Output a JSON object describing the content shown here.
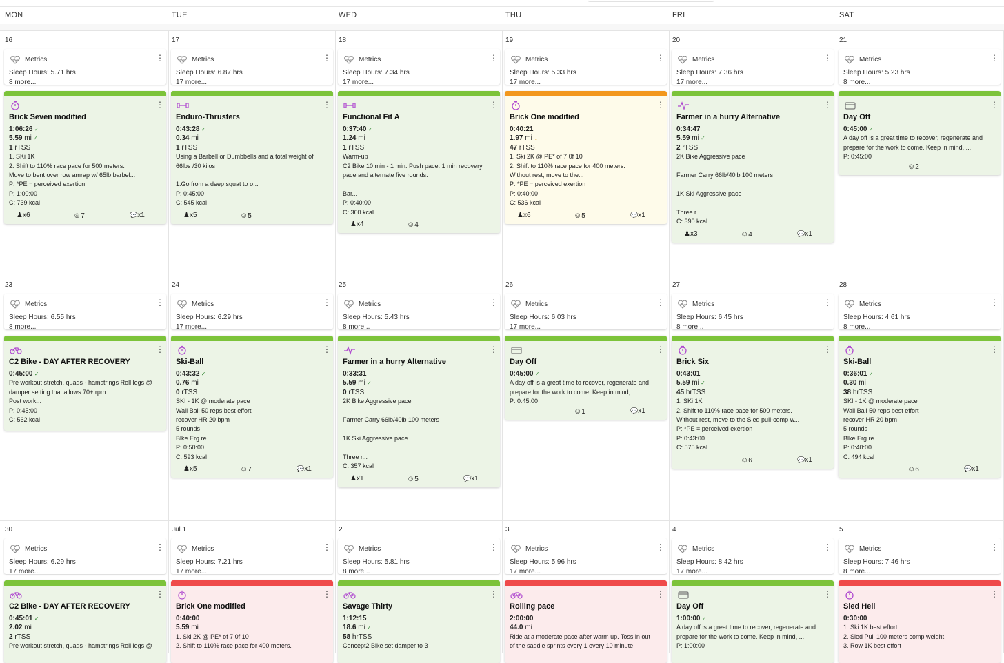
{
  "header": {
    "days": [
      "MON",
      "TUE",
      "WED",
      "THU",
      "FRI",
      "SAT"
    ]
  },
  "colors": {
    "green": "#7cc33a",
    "orange": "#f2971d",
    "red": "#ef4a4a",
    "icon": "#b04bd0"
  },
  "metrics_label": "Metrics",
  "weeks": [
    {
      "dates": [
        "16",
        "17",
        "18",
        "19",
        "20",
        "21"
      ],
      "metrics": [
        [
          "Sleep Hours: 5.71 hrs",
          "8 more..."
        ],
        [
          "Sleep Hours: 6.87 hrs",
          "17 more..."
        ],
        [
          "Sleep Hours: 7.34 hrs",
          "17 more..."
        ],
        [
          "Sleep Hours: 5.33 hrs",
          "17 more..."
        ],
        [
          "Sleep Hours: 7.36 hrs",
          "17 more..."
        ],
        [
          "Sleep Hours: 5.23 hrs",
          "8 more..."
        ]
      ],
      "cards": [
        {
          "color": "green",
          "icon": "stopwatch-icon",
          "title": "Brick Seven modified",
          "stats": [
            [
              "1:06:26",
              "",
              " ✓"
            ],
            [
              "5.59",
              " mi",
              " ✓"
            ],
            [
              "1",
              " rTSS",
              ""
            ]
          ],
          "lines": [
            "1. SKi 1K",
            "2. Shift to 110% race pace for 500 meters.",
            "Move to bent over row amrap w/ 65lb barbel...",
            "P: *PE = perceived exertion",
            "P: 1:00:00",
            "C: 739 kcal"
          ],
          "foot": {
            "strength": "x6",
            "mood": "7",
            "comments": "x1"
          }
        },
        {
          "color": "green",
          "icon": "dumbbell-icon",
          "title": "Enduro-Thrusters",
          "stats": [
            [
              "0:43:28",
              "",
              " ✓"
            ],
            [
              "0.34",
              " mi",
              ""
            ],
            [
              "1",
              " rTSS",
              ""
            ]
          ],
          "lines": [
            "Using a Barbell or Dumbbells and a total weight of",
            "66lbs /30 kilos",
            "",
            "1.Go from a deep squat to o...",
            "P: 0:45:00",
            "C: 545 kcal"
          ],
          "foot": {
            "strength": "x5",
            "mood": "5",
            "comments": ""
          }
        },
        {
          "color": "green",
          "icon": "dumbbell-icon",
          "title": "Functional Fit A",
          "stats": [
            [
              "0:37:40",
              "",
              " ✓"
            ],
            [
              "1.24",
              " mi",
              ""
            ],
            [
              "1",
              " rTSS",
              ""
            ]
          ],
          "lines": [
            "Warm-up",
            "C2 Bike 10 min - 1 min. Push pace: 1 min recovery",
            "pace and alternate five rounds.",
            "",
            "Bar...",
            "P: 0:40:00",
            "C: 360 kcal"
          ],
          "foot": {
            "strength": "x4",
            "mood": "4",
            "comments": ""
          }
        },
        {
          "color": "orange",
          "icon": "stopwatch-icon",
          "title": "Brick One modified",
          "stats": [
            [
              "0:40:21",
              "",
              ""
            ],
            [
              "1.97",
              " mi",
              " ⌄"
            ],
            [
              "47",
              " rTSS",
              ""
            ]
          ],
          "lines": [
            "1. Ski 2K @ PE* of 7 0f 10",
            "2. Shift to 110% race pace for 400 meters.",
            "Without rest, move to the...",
            "P: *PE = perceived exertion",
            "P: 0:40:00",
            "C: 536 kcal"
          ],
          "foot": {
            "strength": "x6",
            "mood": "5",
            "comments": "x1"
          }
        },
        {
          "color": "green",
          "icon": "heartbeat-icon",
          "title": "Farmer in a hurry Alternative",
          "stats": [
            [
              "0:34:47",
              "",
              ""
            ],
            [
              "5.59",
              " mi",
              " ✓"
            ],
            [
              "2",
              " rTSS",
              ""
            ]
          ],
          "lines": [
            "2K Bike Aggressive pace",
            "",
            "Farmer Carry 66lb/40lb 100 meters",
            "",
            "1K Ski Aggressive pace",
            "",
            "Three r...",
            "C: 390 kcal"
          ],
          "foot": {
            "strength": "x3",
            "mood": "4",
            "comments": "x1"
          }
        },
        {
          "color": "green",
          "icon": "day-off-icon",
          "title": "Day Off",
          "stats": [
            [
              "0:45:00",
              "",
              " ✓"
            ]
          ],
          "lines": [
            "A day off is a great time to recover, regenerate and",
            "prepare for the work to come. Keep in mind, ...",
            "P: 0:45:00"
          ],
          "foot": {
            "strength": "",
            "mood": "2",
            "comments": ""
          }
        }
      ]
    },
    {
      "dates": [
        "23",
        "24",
        "25",
        "26",
        "27",
        "28"
      ],
      "metrics": [
        [
          "Sleep Hours: 6.55 hrs",
          "8 more..."
        ],
        [
          "Sleep Hours: 6.29 hrs",
          "17 more..."
        ],
        [
          "Sleep Hours: 5.43 hrs",
          "8 more..."
        ],
        [
          "Sleep Hours: 6.03 hrs",
          "17 more..."
        ],
        [
          "Sleep Hours: 6.45 hrs",
          "8 more..."
        ],
        [
          "Sleep Hours: 4.61 hrs",
          "8 more..."
        ]
      ],
      "cards": [
        {
          "color": "green",
          "icon": "bike-icon",
          "title": "C2 Bike - DAY AFTER RECOVERY",
          "stats": [
            [
              "0:45:00",
              "",
              " ✓"
            ]
          ],
          "lines": [
            "Pre workout stretch, quads - hamstrings Roll legs @",
            "damper setting that allows 70+ rpm",
            "Post work...",
            "P: 0:45:00",
            "C: 562 kcal"
          ],
          "foot": {
            "strength": "",
            "mood": "",
            "comments": ""
          }
        },
        {
          "color": "green",
          "icon": "stopwatch-icon",
          "title": "Ski-Ball",
          "stats": [
            [
              "0:43:32",
              "",
              " ✓"
            ],
            [
              "0.76",
              " mi",
              ""
            ],
            [
              "0",
              " rTSS",
              ""
            ]
          ],
          "lines": [
            "SKI - 1K @ moderate pace",
            "Wall Ball 50 reps best effort",
            "recover HR 20 bpm",
            "5 rounds",
            "Blke Erg re...",
            "P: 0:50:00",
            "C: 593 kcal"
          ],
          "foot": {
            "strength": "x5",
            "mood": "7",
            "comments": "x1"
          }
        },
        {
          "color": "green",
          "icon": "heartbeat-icon",
          "title": "Farmer in a hurry Alternative",
          "stats": [
            [
              "0:33:31",
              "",
              ""
            ],
            [
              "5.59",
              " mi",
              " ✓"
            ],
            [
              "0",
              " rTSS",
              ""
            ]
          ],
          "lines": [
            "2K Bike Aggressive pace",
            "",
            "Farmer Carry 66lb/40lb 100 meters",
            "",
            "1K Ski Aggressive pace",
            "",
            "Three r...",
            "C: 357 kcal"
          ],
          "foot": {
            "strength": "x1",
            "mood": "5",
            "comments": "x1"
          }
        },
        {
          "color": "green",
          "icon": "day-off-icon",
          "title": "Day Off",
          "stats": [
            [
              "0:45:00",
              "",
              " ✓"
            ]
          ],
          "lines": [
            "A day off is a great time to recover, regenerate and",
            "prepare for the work to come. Keep in mind, ...",
            "P: 0:45:00"
          ],
          "foot": {
            "strength": "",
            "mood": "1",
            "comments": "x1"
          }
        },
        {
          "color": "green",
          "icon": "stopwatch-icon",
          "title": "Brick Six",
          "stats": [
            [
              "0:43:01",
              "",
              ""
            ],
            [
              "5.59",
              " mi",
              " ✓"
            ],
            [
              "45",
              " hrTSS",
              ""
            ]
          ],
          "lines": [
            "1. SKi 1K",
            "2. Shift to 110% race pace for 500 meters.",
            "Without rest, move to the Sled pull-comp w...",
            "P: *PE = perceived exertion",
            "P: 0:43:00",
            "C: 575 kcal"
          ],
          "foot": {
            "strength": "",
            "mood": "6",
            "comments": "x1"
          }
        },
        {
          "color": "green",
          "icon": "stopwatch-icon",
          "title": "Ski-Ball",
          "stats": [
            [
              "0:36:01",
              "",
              " ✓"
            ],
            [
              "0.30",
              " mi",
              ""
            ],
            [
              "38",
              " hrTSS",
              ""
            ]
          ],
          "lines": [
            "SKI - 1K @ moderate pace",
            "Wall Ball 50 reps best effort",
            "recover HR 20 bpm",
            "5 rounds",
            "Blke Erg re...",
            "P: 0:40:00",
            "C: 494 kcal"
          ],
          "foot": {
            "strength": "",
            "mood": "6",
            "comments": "x1"
          }
        }
      ]
    },
    {
      "dates": [
        "30",
        "Jul 1",
        "2",
        "3",
        "4",
        "5"
      ],
      "metrics": [
        [
          "Sleep Hours: 6.29 hrs",
          "17 more..."
        ],
        [
          "Sleep Hours: 7.21 hrs",
          "17 more..."
        ],
        [
          "Sleep Hours: 5.81 hrs",
          "8 more..."
        ],
        [
          "Sleep Hours: 5.96 hrs",
          "17 more..."
        ],
        [
          "Sleep Hours: 8.42 hrs",
          "17 more..."
        ],
        [
          "Sleep Hours: 7.46 hrs",
          "8 more..."
        ]
      ],
      "cards": [
        {
          "color": "green",
          "icon": "bike-icon",
          "title": "C2 Bike - DAY AFTER RECOVERY",
          "stats": [
            [
              "0:45:01",
              "",
              " ✓"
            ],
            [
              "2.02",
              " mi",
              ""
            ],
            [
              "2",
              " rTSS",
              ""
            ]
          ],
          "lines": [
            "Pre workout stretch, quads - hamstrings Roll legs @"
          ],
          "foot": {
            "strength": "",
            "mood": "",
            "comments": ""
          }
        },
        {
          "color": "red",
          "icon": "stopwatch-icon",
          "title": "Brick One modified",
          "stats": [
            [
              "0:40:00",
              "",
              ""
            ],
            [
              "5.59",
              " mi",
              ""
            ]
          ],
          "lines": [
            "1. Ski 2K @ PE* of 7 0f 10",
            "2. Shift to 110% race pace for 400 meters."
          ],
          "foot": {
            "strength": "",
            "mood": "",
            "comments": ""
          }
        },
        {
          "color": "green",
          "icon": "bike-icon",
          "title": "Savage Thirty",
          "stats": [
            [
              "1:12:15",
              "",
              ""
            ],
            [
              "18.6",
              " mi",
              " ✓"
            ],
            [
              "58",
              " hrTSS",
              ""
            ]
          ],
          "lines": [
            "Concept2 Bike set damper to 3"
          ],
          "foot": {
            "strength": "",
            "mood": "",
            "comments": ""
          }
        },
        {
          "color": "red",
          "icon": "bike-icon",
          "title": "Rolling pace",
          "stats": [
            [
              "2:00:00",
              "",
              ""
            ],
            [
              "44.0",
              " mi",
              ""
            ]
          ],
          "lines": [
            "Ride at a moderate pace after warm up. Toss in out",
            "of the saddle sprints every 1 every 10 minute"
          ],
          "foot": {
            "strength": "",
            "mood": "",
            "comments": ""
          }
        },
        {
          "color": "green",
          "icon": "day-off-icon",
          "title": "Day Off",
          "stats": [
            [
              "1:00:00",
              "",
              " ✓"
            ]
          ],
          "lines": [
            "A day off is a great time to recover, regenerate and",
            "prepare for the work to come. Keep in mind, ...",
            "P: 1:00:00"
          ],
          "foot": {
            "strength": "",
            "mood": "",
            "comments": ""
          }
        },
        {
          "color": "red",
          "icon": "stopwatch-icon",
          "title": "Sled Hell",
          "stats": [
            [
              "0:30:00",
              "",
              ""
            ]
          ],
          "lines": [
            "1. Ski 1K best effort",
            "2. Sled Pull 100 meters comp weight",
            "3. Row 1K best effort"
          ],
          "foot": {
            "strength": "",
            "mood": "",
            "comments": ""
          }
        }
      ]
    }
  ]
}
